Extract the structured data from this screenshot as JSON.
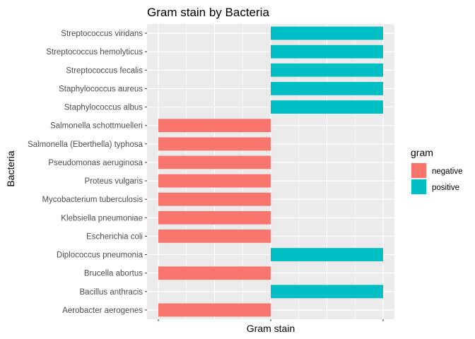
{
  "chart_data": {
    "type": "bar",
    "orientation": "horizontal",
    "title": "Gram stain by Bacteria",
    "xlabel": "Gram stain",
    "ylabel": "Bacteria",
    "x_tick_labels_shown": false,
    "grid": true,
    "panel_background": "#ebebeb",
    "legend": {
      "title": "gram",
      "placement": "right",
      "entries": [
        {
          "name": "negative",
          "color": "#F8766D"
        },
        {
          "name": "positive",
          "color": "#00BFC4"
        }
      ]
    },
    "categories": [
      "Aerobacter aerogenes",
      "Bacillus anthracis",
      "Brucella abortus",
      "Diplococcus pneumonia",
      "Escherichia coli",
      "Klebsiella pneumoniae",
      "Mycobacterium tuberculosis",
      "Proteus vulgaris",
      "Pseudomonas aeruginosa",
      "Salmonella (Eberthella) typhosa",
      "Salmonella schottmuelleri",
      "Staphylococcus albus",
      "Staphylococcus aureus",
      "Streptococcus fecalis",
      "Streptococcus hemolyticus",
      "Streptococcus viridans"
    ],
    "values": [
      "negative",
      "positive",
      "negative",
      "positive",
      "negative",
      "negative",
      "negative",
      "negative",
      "negative",
      "negative",
      "negative",
      "positive",
      "positive",
      "positive",
      "positive",
      "positive"
    ]
  }
}
